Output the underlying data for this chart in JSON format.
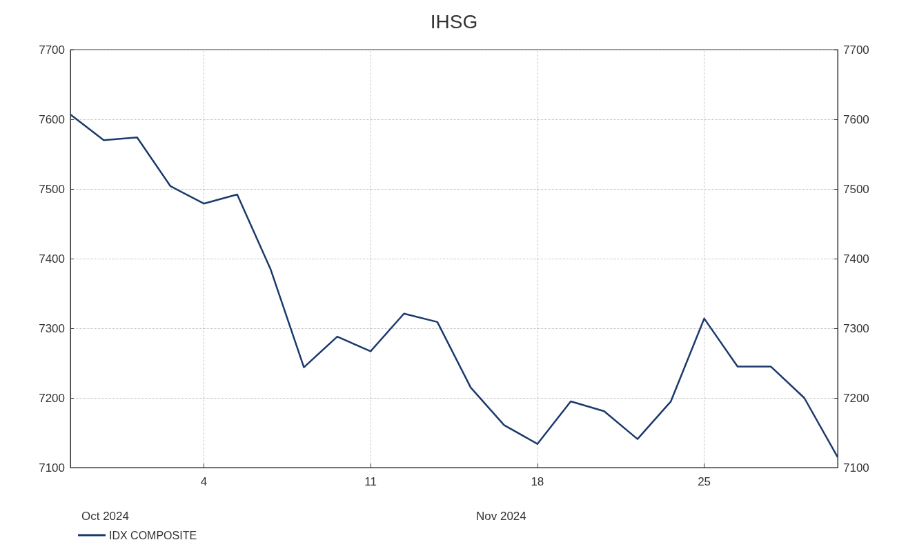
{
  "chart_data": {
    "type": "line",
    "title": "IHSG",
    "categories": [
      null,
      null,
      null,
      null,
      "4",
      null,
      null,
      null,
      null,
      "11",
      null,
      null,
      null,
      null,
      "18",
      null,
      null,
      null,
      null,
      "25",
      null,
      null,
      null,
      null
    ],
    "series": [
      {
        "name": "IDX COMPOSITE",
        "color": "#1b3a6b",
        "values": [
          7607,
          7570,
          7574,
          7504,
          7479,
          7492,
          7385,
          7244,
          7288,
          7267,
          7321,
          7309,
          7215,
          7161,
          7134,
          7195,
          7181,
          7141,
          7195,
          7314,
          7245,
          7245,
          7200,
          7115
        ]
      }
    ],
    "ylim": [
      7100,
      7700
    ],
    "yticks": [
      7100,
      7200,
      7300,
      7400,
      7500,
      7600,
      7700
    ],
    "y2lim": [
      7100,
      7700
    ],
    "y2ticks": [
      7100,
      7200,
      7300,
      7400,
      7500,
      7600,
      7700
    ],
    "annotations": [
      "Oct 2024",
      "Nov 2024"
    ],
    "grid": true,
    "legend": "bottom left",
    "marker": "none",
    "line_style": "solid"
  }
}
